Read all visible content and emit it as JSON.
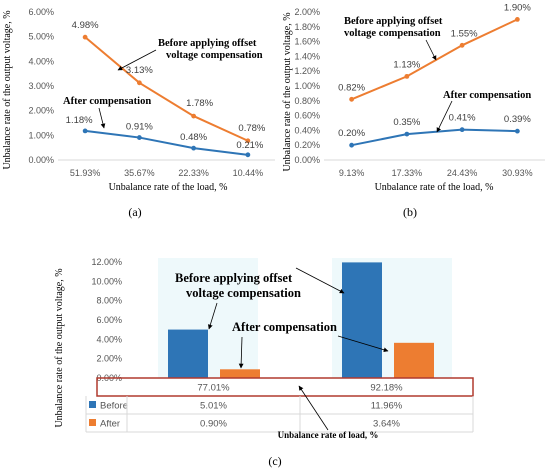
{
  "chart_data": [
    {
      "id": "a",
      "type": "line",
      "caption": "(a)",
      "xlabel": "Unbalance rate of the load, %",
      "ylabel": "Unbalance rate of the output voltage, %",
      "categories": [
        "51.93%",
        "35.67%",
        "22.33%",
        "10.44%"
      ],
      "yticks": [
        "0.00%",
        "1.00%",
        "2.00%",
        "3.00%",
        "4.00%",
        "5.00%",
        "6.00%"
      ],
      "ylim": [
        0,
        6
      ],
      "series": [
        {
          "color": "#ED7D31",
          "values": [
            4.98,
            3.13,
            1.78,
            0.78
          ],
          "labels": [
            "4.98%",
            "3.13%",
            "1.78%",
            "0.78%"
          ]
        },
        {
          "color": "#2E75B6",
          "values": [
            1.18,
            0.91,
            0.48,
            0.21
          ],
          "labels": [
            "1.18%",
            "0.91%",
            "0.48%",
            "0.21%"
          ]
        }
      ],
      "annotations": [
        {
          "lines": [
            "Before applying offset",
            "voltage compensation"
          ]
        },
        {
          "lines": [
            "After compensation"
          ]
        }
      ],
      "grid": false
    },
    {
      "id": "b",
      "type": "line",
      "caption": "(b)",
      "xlabel": "Unbalance rate of the load, %",
      "ylabel": "Unbalance rate of the output voltage, %",
      "categories": [
        "9.13%",
        "17.33%",
        "24.43%",
        "30.93%"
      ],
      "yticks": [
        "0.00%",
        "0.20%",
        "0.40%",
        "0.60%",
        "0.80%",
        "1.00%",
        "1.20%",
        "1.40%",
        "1.60%",
        "1.80%",
        "2.00%"
      ],
      "ylim": [
        0,
        2
      ],
      "series": [
        {
          "color": "#ED7D31",
          "values": [
            0.82,
            1.13,
            1.55,
            1.9
          ],
          "labels": [
            "0.82%",
            "1.13%",
            "1.55%",
            "1.90%"
          ]
        },
        {
          "color": "#2E75B6",
          "values": [
            0.2,
            0.35,
            0.41,
            0.39
          ],
          "labels": [
            "0.20%",
            "0.35%",
            "0.41%",
            "0.39%"
          ]
        }
      ],
      "annotations": [
        {
          "lines": [
            "Before applying offset",
            "voltage compensation"
          ]
        },
        {
          "lines": [
            "After compensation"
          ]
        }
      ],
      "grid": false
    },
    {
      "id": "c",
      "type": "bar",
      "caption": "(c)",
      "xlabel": "Unbalance rate of load, %",
      "ylabel": "Unbalance rate of the output voltage, %",
      "categories": [
        "77.01%",
        "92.18%"
      ],
      "yticks": [
        "0.00%",
        "2.00%",
        "4.00%",
        "6.00%",
        "8.00%",
        "10.00%",
        "12.00%"
      ],
      "ylim": [
        0,
        12
      ],
      "series": [
        {
          "name": "Before",
          "color": "#2E75B6",
          "values": [
            5.01,
            11.96
          ],
          "labels": [
            "5.01%",
            "11.96%"
          ]
        },
        {
          "name": "After",
          "color": "#ED7D31",
          "values": [
            0.9,
            3.64
          ],
          "labels": [
            "0.90%",
            "3.64%"
          ]
        }
      ],
      "annotations": [
        {
          "lines": [
            "Before applying offset",
            "voltage compensation"
          ]
        },
        {
          "lines": [
            "After compensation"
          ]
        }
      ],
      "data_table": true
    }
  ]
}
